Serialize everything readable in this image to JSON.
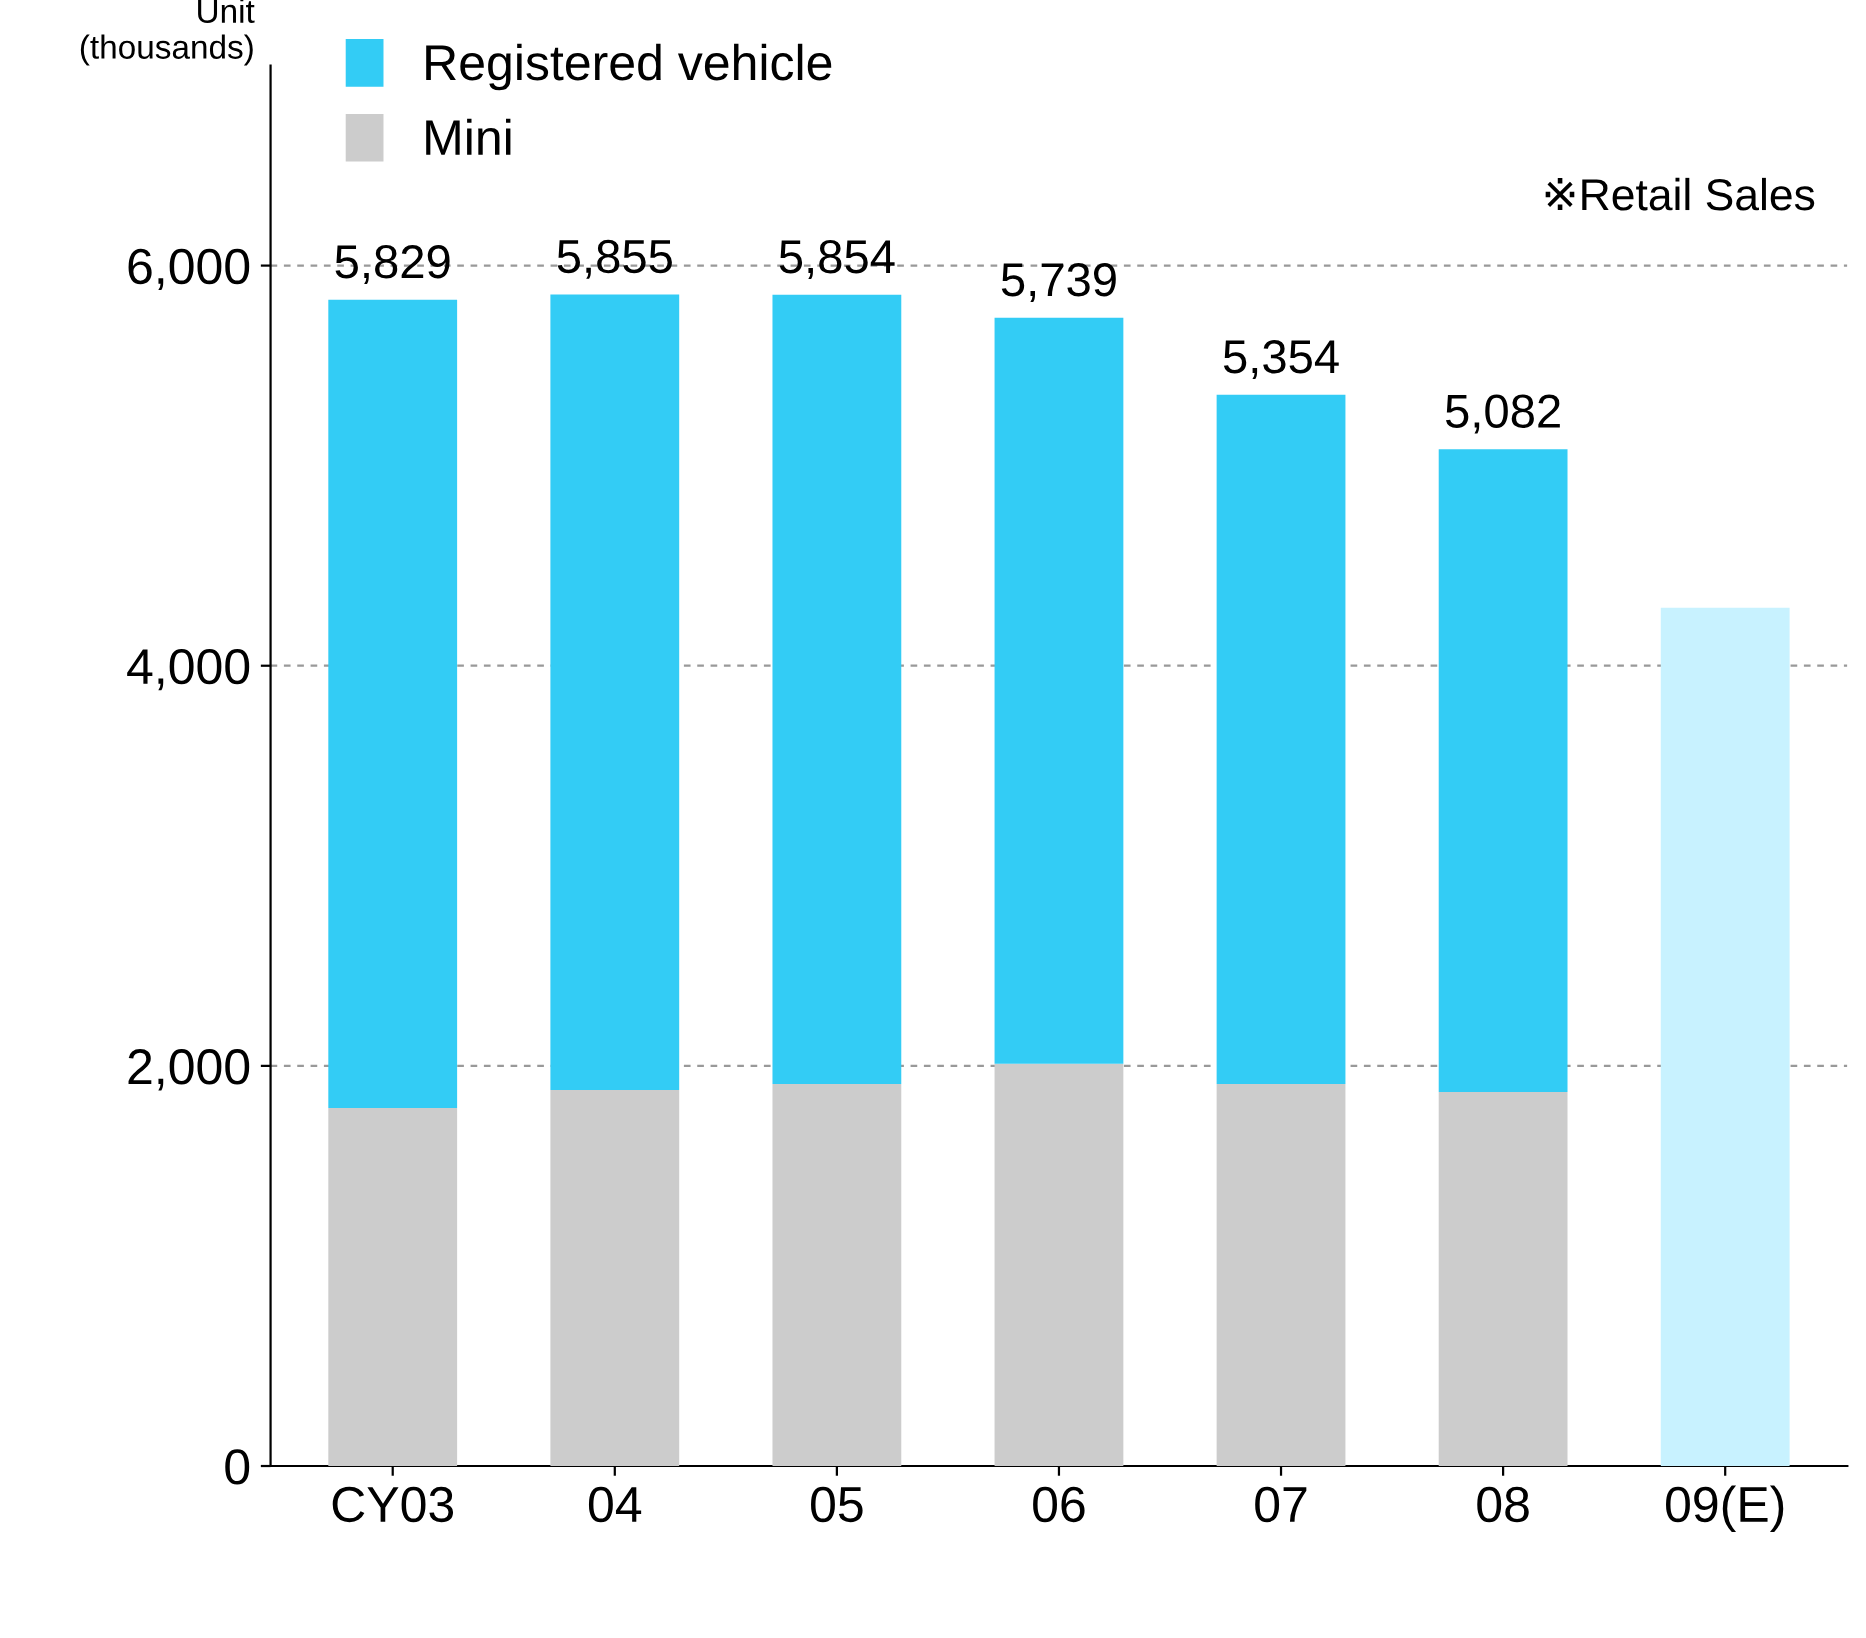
{
  "chart_data": {
    "type": "bar",
    "stacked": true,
    "ylabel": "Unit\n(thousands)",
    "categories": [
      "CY03",
      "04",
      "05",
      "06",
      "07",
      "08",
      "09(E)"
    ],
    "series": [
      {
        "name": "Mini",
        "color": "#cccccc",
        "values": [
          1790,
          1880,
          1910,
          2010,
          1910,
          1870,
          null
        ]
      },
      {
        "name": "Registered vehicle",
        "color": "#33ccf5",
        "colors": [
          "#33ccf5",
          "#33ccf5",
          "#33ccf5",
          "#33ccf5",
          "#33ccf5",
          "#33ccf5",
          "#c8f2ff"
        ],
        "values": [
          4039,
          3975,
          3944,
          3729,
          3444,
          3212,
          4290
        ]
      }
    ],
    "totals": [
      "5,829",
      "5,855",
      "5,854",
      "5,739",
      "5,354",
      "5,082",
      null
    ],
    "ylim": [
      0,
      7000
    ],
    "yticks": [
      {
        "value": 0,
        "label": "0"
      },
      {
        "value": 2000,
        "label": "2,000"
      },
      {
        "value": 4000,
        "label": "4,000"
      },
      {
        "value": 6000,
        "label": "6,000"
      }
    ],
    "grid": "y",
    "legend": "top left",
    "annotations": [
      "※Retail Sales"
    ]
  }
}
